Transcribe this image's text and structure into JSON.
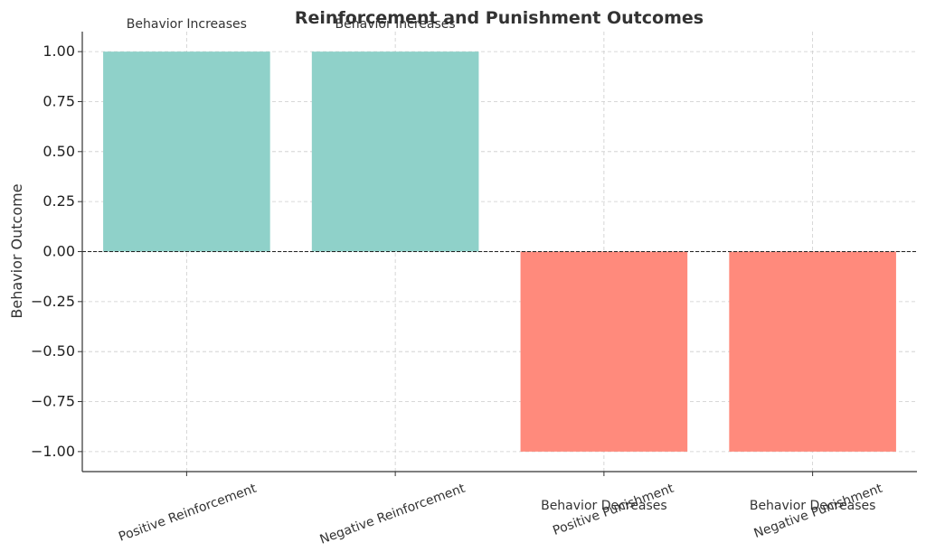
{
  "chart_data": {
    "type": "bar",
    "title": "Reinforcement and Punishment Outcomes",
    "xlabel": "",
    "ylabel": "Behavior Outcome",
    "categories": [
      "Positive Reinforcement",
      "Negative Reinforcement",
      "Positive Punishment",
      "Negative Punishment"
    ],
    "values": [
      1,
      1,
      -1,
      -1
    ],
    "annotations": [
      "Behavior Increases",
      "Behavior Increases",
      "Behavior Decreases",
      "Behavior Decreases"
    ],
    "colors": [
      "#8fd1c9",
      "#8fd1c9",
      "#ff8a7c",
      "#ff8a7c"
    ],
    "ylim": [
      -1.1,
      1.1
    ],
    "yticks": [
      1.0,
      0.75,
      0.5,
      0.25,
      0.0,
      -0.25,
      -0.5,
      -0.75,
      -1.0
    ],
    "ytick_labels": [
      "1.00",
      "0.75",
      "0.50",
      "0.25",
      "0.00",
      "−0.25",
      "−0.50",
      "−0.75",
      "−1.00"
    ],
    "grid": true,
    "zero_line": true
  }
}
